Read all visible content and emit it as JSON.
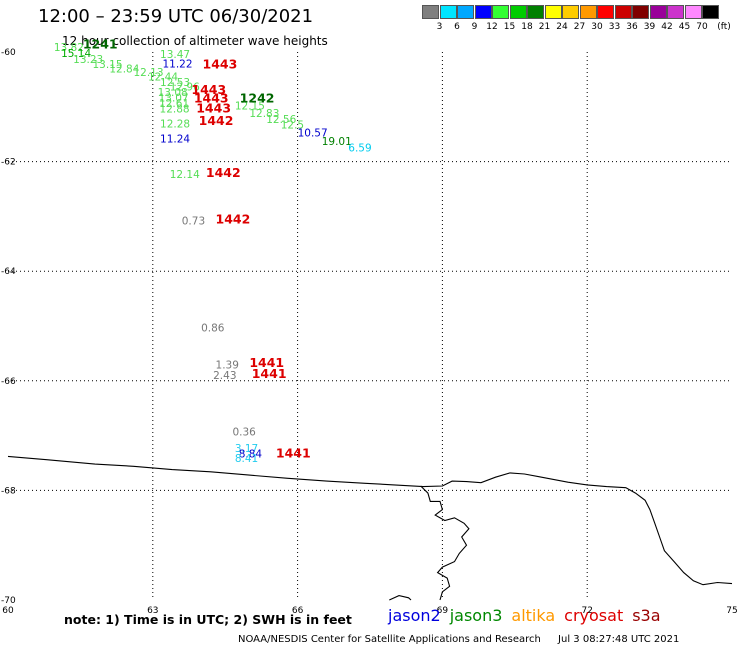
{
  "header": {
    "title": "12:00 – 23:59 UTC 06/30/2021",
    "subtitle": "12 hour collection of altimeter wave heights"
  },
  "colorbar": {
    "unit": "(ft)",
    "bins": [
      {
        "label": "3",
        "color": "#7f7f7f"
      },
      {
        "label": "6",
        "color": "#00e5ff"
      },
      {
        "label": "9",
        "color": "#00a8ff"
      },
      {
        "label": "12",
        "color": "#0000ff"
      },
      {
        "label": "15",
        "color": "#33ff33"
      },
      {
        "label": "18",
        "color": "#00cc00"
      },
      {
        "label": "21",
        "color": "#008000"
      },
      {
        "label": "24",
        "color": "#ffff00"
      },
      {
        "label": "27",
        "color": "#ffcc00"
      },
      {
        "label": "30",
        "color": "#ff9900"
      },
      {
        "label": "33",
        "color": "#ff0000"
      },
      {
        "label": "36",
        "color": "#cc0000"
      },
      {
        "label": "39",
        "color": "#800000"
      },
      {
        "label": "42",
        "color": "#990099"
      },
      {
        "label": "45",
        "color": "#cc33cc"
      },
      {
        "label": "70",
        "color": "#ff88ff"
      },
      {
        "label": "",
        "color": "#000000"
      }
    ]
  },
  "chart_data": {
    "type": "scatter",
    "projection": "lon-lat",
    "xlim": [
      60,
      75
    ],
    "ylim": [
      -70,
      -60
    ],
    "x_ticks": [
      "60",
      "63",
      "66",
      "69",
      "72",
      "75"
    ],
    "y_ticks": [
      "-60",
      "-62",
      "-64",
      "-66",
      "-68",
      "-70"
    ],
    "grid": "dotted",
    "wave_heights": [
      {
        "x": 60.95,
        "y": -59.98,
        "value": "13.82",
        "color": "#55dd55"
      },
      {
        "x": 61.1,
        "y": -60.09,
        "value": "15.14",
        "color": "#00aa00"
      },
      {
        "x": 61.35,
        "y": -60.2,
        "value": "13.23",
        "color": "#55dd55"
      },
      {
        "x": 61.75,
        "y": -60.29,
        "value": "13.15",
        "color": "#55dd55"
      },
      {
        "x": 62.1,
        "y": -60.37,
        "value": "12.84",
        "color": "#55dd55"
      },
      {
        "x": 63.15,
        "y": -60.11,
        "value": "13.47",
        "color": "#55dd55"
      },
      {
        "x": 63.2,
        "y": -60.28,
        "value": "11.22",
        "color": "#0000cc"
      },
      {
        "x": 62.6,
        "y": -60.44,
        "value": "12.13",
        "color": "#55dd55"
      },
      {
        "x": 62.9,
        "y": -60.52,
        "value": "12.44",
        "color": "#55dd55"
      },
      {
        "x": 63.15,
        "y": -60.62,
        "value": "12.53",
        "color": "#55dd55"
      },
      {
        "x": 63.35,
        "y": -60.7,
        "value": "12.96",
        "color": "#55dd55"
      },
      {
        "x": 63.1,
        "y": -60.8,
        "value": "13.08",
        "color": "#55dd55"
      },
      {
        "x": 63.12,
        "y": -60.9,
        "value": "13.07",
        "color": "#55dd55"
      },
      {
        "x": 63.13,
        "y": -61.0,
        "value": "12.61",
        "color": "#55dd55"
      },
      {
        "x": 63.14,
        "y": -61.1,
        "value": "12.88",
        "color": "#55dd55"
      },
      {
        "x": 64.7,
        "y": -61.05,
        "value": "12.15",
        "color": "#55dd55"
      },
      {
        "x": 65.0,
        "y": -61.19,
        "value": "12.83",
        "color": "#55dd55"
      },
      {
        "x": 65.35,
        "y": -61.3,
        "value": "12.56",
        "color": "#55dd55"
      },
      {
        "x": 65.65,
        "y": -61.4,
        "value": "12.5",
        "color": "#55dd55"
      },
      {
        "x": 63.15,
        "y": -61.38,
        "value": "12.28",
        "color": "#55dd55"
      },
      {
        "x": 66.0,
        "y": -61.54,
        "value": "10.57",
        "color": "#0000cc"
      },
      {
        "x": 66.5,
        "y": -61.7,
        "value": "19.01",
        "color": "#008000"
      },
      {
        "x": 67.05,
        "y": -61.82,
        "value": "6.59",
        "color": "#00ccee"
      },
      {
        "x": 63.15,
        "y": -61.65,
        "value": "11.24",
        "color": "#0000cc"
      },
      {
        "x": 63.35,
        "y": -62.3,
        "value": "12.14",
        "color": "#55dd55"
      },
      {
        "x": 63.6,
        "y": -63.15,
        "value": "0.73",
        "color": "#777777"
      },
      {
        "x": 64.0,
        "y": -65.1,
        "value": "0.86",
        "color": "#777777"
      },
      {
        "x": 64.3,
        "y": -65.78,
        "value": "1.39",
        "color": "#777777"
      },
      {
        "x": 64.25,
        "y": -65.97,
        "value": "2.43",
        "color": "#777777"
      },
      {
        "x": 64.65,
        "y": -67.0,
        "value": "0.36",
        "color": "#777777"
      },
      {
        "x": 64.7,
        "y": -67.3,
        "value": "3.17",
        "color": "#22ccee"
      },
      {
        "x": 64.78,
        "y": -67.4,
        "value": "8.84",
        "color": "#0000cc"
      },
      {
        "x": 64.7,
        "y": -67.48,
        "value": "8.41",
        "color": "#22ccee"
      }
    ],
    "pass_times": [
      {
        "x": 61.55,
        "y": -59.94,
        "value": "1241",
        "color": "#006600"
      },
      {
        "x": 64.03,
        "y": -60.3,
        "value": "1443",
        "color": "#dd0000"
      },
      {
        "x": 63.8,
        "y": -60.77,
        "value": "1443",
        "color": "#dd0000"
      },
      {
        "x": 63.85,
        "y": -60.92,
        "value": "1443",
        "color": "#dd0000"
      },
      {
        "x": 64.8,
        "y": -60.92,
        "value": "1242",
        "color": "#006600"
      },
      {
        "x": 63.9,
        "y": -61.1,
        "value": "1443",
        "color": "#dd0000"
      },
      {
        "x": 63.95,
        "y": -61.33,
        "value": "1442",
        "color": "#dd0000"
      },
      {
        "x": 64.1,
        "y": -62.28,
        "value": "1442",
        "color": "#dd0000"
      },
      {
        "x": 64.3,
        "y": -63.13,
        "value": "1442",
        "color": "#dd0000"
      },
      {
        "x": 65.0,
        "y": -65.75,
        "value": "1441",
        "color": "#dd0000"
      },
      {
        "x": 65.05,
        "y": -65.95,
        "value": "1441",
        "color": "#dd0000"
      },
      {
        "x": 65.55,
        "y": -67.4,
        "value": "1441",
        "color": "#dd0000"
      }
    ],
    "coastline": [
      [
        60,
        -67.38
      ],
      [
        60.8,
        -67.44
      ],
      [
        61.8,
        -67.52
      ],
      [
        62.6,
        -67.56
      ],
      [
        63.4,
        -67.62
      ],
      [
        64.2,
        -67.66
      ],
      [
        65.0,
        -67.72
      ],
      [
        65.8,
        -67.78
      ],
      [
        66.6,
        -67.83
      ],
      [
        67.4,
        -67.87
      ],
      [
        68.0,
        -67.9
      ],
      [
        68.6,
        -67.93
      ],
      [
        69.0,
        -67.92
      ],
      [
        69.2,
        -67.83
      ],
      [
        69.5,
        -67.84
      ],
      [
        69.8,
        -67.86
      ],
      [
        70.1,
        -67.76
      ],
      [
        70.4,
        -67.68
      ],
      [
        70.7,
        -67.7
      ],
      [
        71.0,
        -67.75
      ],
      [
        71.3,
        -67.8
      ],
      [
        71.6,
        -67.85
      ],
      [
        72.0,
        -67.9
      ],
      [
        72.4,
        -67.93
      ],
      [
        72.8,
        -67.95
      ],
      [
        73.0,
        -68.05
      ],
      [
        73.2,
        -68.18
      ],
      [
        73.3,
        -68.35
      ],
      [
        73.4,
        -68.6
      ],
      [
        73.5,
        -68.85
      ],
      [
        73.6,
        -69.1
      ],
      [
        73.8,
        -69.3
      ],
      [
        74.0,
        -69.5
      ],
      [
        74.2,
        -69.65
      ],
      [
        74.4,
        -69.72
      ],
      [
        74.7,
        -69.68
      ],
      [
        75,
        -69.7
      ]
    ],
    "islands": [
      [
        [
          68.55,
          -67.92
        ],
        [
          68.7,
          -68.05
        ],
        [
          68.75,
          -68.2
        ],
        [
          68.95,
          -68.2
        ],
        [
          69.0,
          -68.35
        ],
        [
          68.85,
          -68.45
        ],
        [
          69.05,
          -68.55
        ],
        [
          69.25,
          -68.5
        ],
        [
          69.45,
          -68.6
        ],
        [
          69.55,
          -68.7
        ],
        [
          69.4,
          -68.85
        ],
        [
          69.5,
          -69.0
        ],
        [
          69.35,
          -69.15
        ],
        [
          69.25,
          -69.3
        ],
        [
          69.0,
          -69.4
        ],
        [
          68.9,
          -69.5
        ],
        [
          69.1,
          -69.6
        ],
        [
          69.15,
          -69.75
        ],
        [
          69.0,
          -69.85
        ],
        [
          68.95,
          -70.0
        ]
      ],
      [
        [
          67.9,
          -70.0
        ],
        [
          68.1,
          -69.92
        ],
        [
          68.3,
          -69.96
        ],
        [
          68.35,
          -70.0
        ]
      ]
    ]
  },
  "footer": {
    "note": "note: 1) Time is in UTC; 2) SWH is in feet",
    "missions": [
      {
        "label": "jason2",
        "color": "#0000dd"
      },
      {
        "label": "jason3",
        "color": "#008800"
      },
      {
        "label": "altika",
        "color": "#ff9900"
      },
      {
        "label": "cryosat",
        "color": "#dd0000"
      },
      {
        "label": "s3a",
        "color": "#990000"
      }
    ],
    "credit": "NOAA/NESDIS Center for Satellite Applications and Research",
    "generated": "Jul  3 08:27:48 UTC 2021"
  }
}
